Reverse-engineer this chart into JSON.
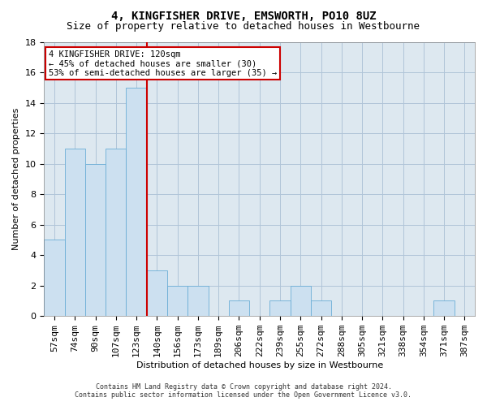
{
  "title": "4, KINGFISHER DRIVE, EMSWORTH, PO10 8UZ",
  "subtitle": "Size of property relative to detached houses in Westbourne",
  "xlabel": "Distribution of detached houses by size in Westbourne",
  "ylabel": "Number of detached properties",
  "categories": [
    "57sqm",
    "74sqm",
    "90sqm",
    "107sqm",
    "123sqm",
    "140sqm",
    "156sqm",
    "173sqm",
    "189sqm",
    "206sqm",
    "222sqm",
    "239sqm",
    "255sqm",
    "272sqm",
    "288sqm",
    "305sqm",
    "321sqm",
    "338sqm",
    "354sqm",
    "371sqm",
    "387sqm"
  ],
  "values": [
    5,
    11,
    10,
    11,
    15,
    3,
    2,
    2,
    0,
    1,
    0,
    1,
    2,
    1,
    0,
    0,
    0,
    0,
    0,
    1,
    0
  ],
  "bar_color": "#cce0f0",
  "bar_edge_color": "#6baed6",
  "marker_label": "4 KINGFISHER DRIVE: 120sqm",
  "annotation_line1": "← 45% of detached houses are smaller (30)",
  "annotation_line2": "53% of semi-detached houses are larger (35) →",
  "annotation_box_color": "white",
  "annotation_box_edge": "#cc0000",
  "vline_color": "#cc0000",
  "ylim": [
    0,
    18
  ],
  "yticks": [
    0,
    2,
    4,
    6,
    8,
    10,
    12,
    14,
    16,
    18
  ],
  "grid_color": "#b0c4d8",
  "background_color": "#dde8f0",
  "footer_line1": "Contains HM Land Registry data © Crown copyright and database right 2024.",
  "footer_line2": "Contains public sector information licensed under the Open Government Licence v3.0.",
  "title_fontsize": 10,
  "subtitle_fontsize": 9,
  "xlabel_fontsize": 8,
  "ylabel_fontsize": 8,
  "tick_fontsize": 8,
  "annot_fontsize": 7.5,
  "footer_fontsize": 6
}
